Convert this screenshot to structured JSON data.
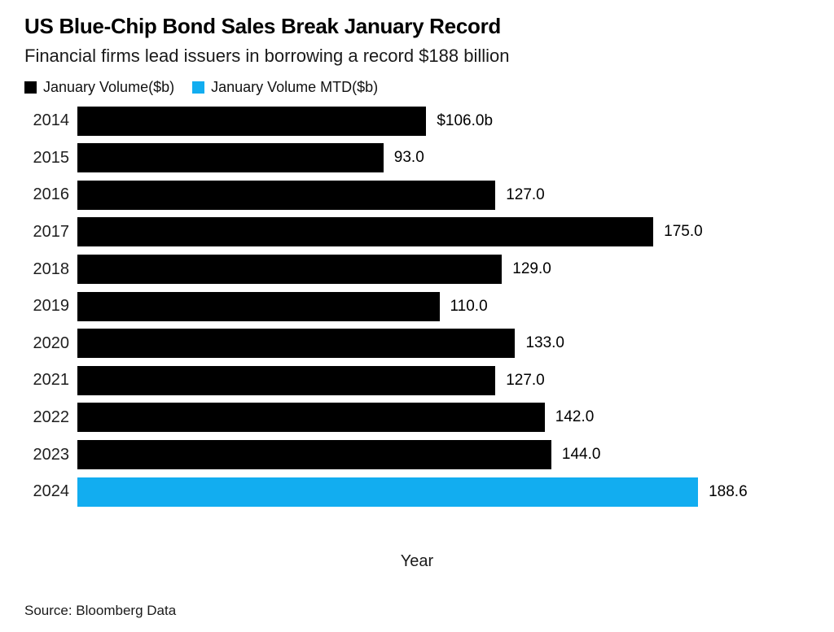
{
  "header": {
    "title": "US Blue-Chip Bond Sales Break January Record",
    "subtitle": "Financial firms lead issuers in borrowing a record $188 billion"
  },
  "legend": [
    {
      "label": "January Volume($b)",
      "color": "#000000"
    },
    {
      "label": "January Volume MTD($b)",
      "color": "#12adf0"
    }
  ],
  "chart_data": {
    "type": "bar",
    "orientation": "horizontal",
    "title": "US Blue-Chip Bond Sales Break January Record",
    "subtitle": "Financial firms lead issuers in borrowing a record $188 billion",
    "xlabel": "Year",
    "ylabel": "",
    "categories": [
      "2014",
      "2015",
      "2016",
      "2017",
      "2018",
      "2019",
      "2020",
      "2021",
      "2022",
      "2023",
      "2024"
    ],
    "values": [
      106.0,
      93.0,
      127.0,
      175.0,
      129.0,
      110.0,
      133.0,
      127.0,
      142.0,
      144.0,
      188.6
    ],
    "value_labels": [
      "$106.0b",
      "93.0",
      "127.0",
      "175.0",
      "129.0",
      "110.0",
      "133.0",
      "127.0",
      "142.0",
      "144.0",
      "188.6"
    ],
    "series_membership": [
      "January Volume($b)",
      "January Volume($b)",
      "January Volume($b)",
      "January Volume($b)",
      "January Volume($b)",
      "January Volume($b)",
      "January Volume($b)",
      "January Volume($b)",
      "January Volume($b)",
      "January Volume($b)",
      "January Volume MTD($b)"
    ],
    "bar_colors": [
      "#000000",
      "#000000",
      "#000000",
      "#000000",
      "#000000",
      "#000000",
      "#000000",
      "#000000",
      "#000000",
      "#000000",
      "#12adf0"
    ],
    "xlim": [
      0,
      220
    ],
    "grid": false,
    "legend_position": "top"
  },
  "source": "Source: Bloomberg Data"
}
